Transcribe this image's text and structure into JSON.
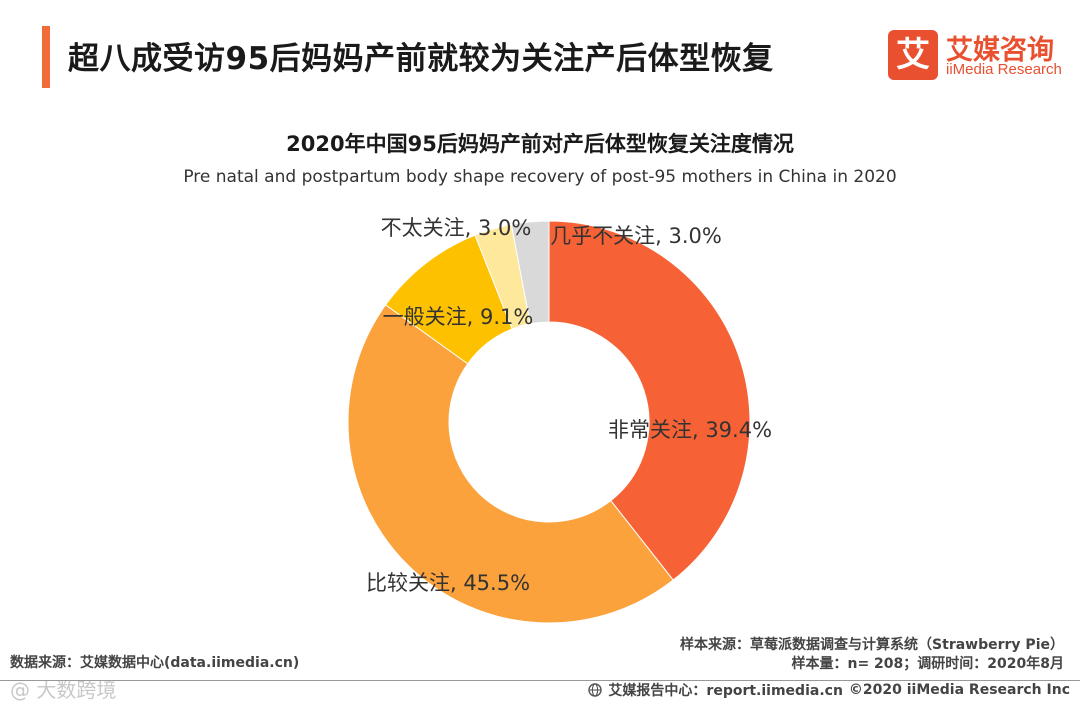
{
  "header": {
    "title": "超八成受访95后妈妈产前就较为关注产后体型恢复",
    "accent_color": "#f26b3a"
  },
  "logo": {
    "mark": "艾",
    "name_cn": "艾媒咨询",
    "name_en": "iiMedia Research",
    "color": "#e8502f"
  },
  "chart_data": {
    "type": "pie",
    "donut": true,
    "title": "2020年中国95后妈妈产前对产后体型恢复关注度情况",
    "subtitle": "Pre natal and postpartum body shape recovery of post-95 mothers in China in 2020",
    "slices": [
      {
        "label": "非常关注",
        "value": 39.4,
        "display": "非常关注, 39.4%",
        "color": "#f66235"
      },
      {
        "label": "比较关注",
        "value": 45.5,
        "display": "比较关注, 45.5%",
        "color": "#fba23c"
      },
      {
        "label": "一般关注",
        "value": 9.1,
        "display": "一般关注, 9.1%",
        "color": "#fec100"
      },
      {
        "label": "不太关注",
        "value": 3.0,
        "display": "不太关注, 3.0%",
        "color": "#fee89c"
      },
      {
        "label": "几乎不关注",
        "value": 3.0,
        "display": "几乎不关注, 3.0%",
        "color": "#d9d9d9"
      }
    ]
  },
  "footer": {
    "data_source": "数据来源：艾媒数据中心(data.iimedia.cn)",
    "sample_source": "样本来源：草莓派数据调查与计算系统（Strawberry Pie）",
    "sample_info": "样本量：n= 208；调研时间：2020年8月",
    "report_center": "艾媒报告中心：report.iimedia.cn",
    "copyright": "©2020  iiMedia Research  Inc",
    "watermark": "@ 大数跨境"
  }
}
